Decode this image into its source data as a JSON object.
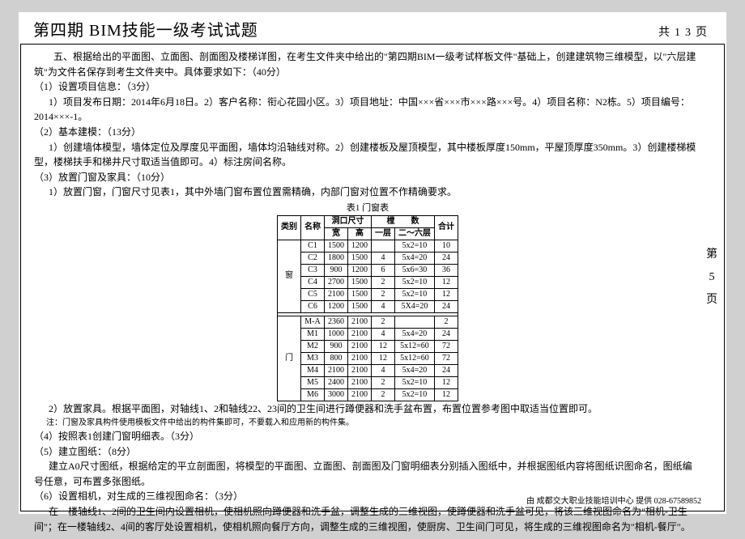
{
  "header": {
    "title": "第四期 BIM技能一级考试试题",
    "pagecount_prefix": "共",
    "pagecount_num": "13",
    "pagecount_suffix": "页"
  },
  "side": {
    "char1": "第",
    "char2": "5",
    "char3": "页"
  },
  "body": {
    "p1": "五、根据给出的平面图、立面图、剖面图及楼梯详图，在考生文件夹中给出的\"第四期BIM一级考试样板文件\"基础上，创建建筑物三维模型，以\"六层建筑\"为文件名保存到考生文件夹中。具体要求如下：（40分）",
    "s1head": "（1）设置项目信息：（3分）",
    "s1body": "1）项目发布日期：2014年6月18日。2）客户名称：衔心花园小区。3）项目地址：中国×××省×××市×××路×××号。4）项目名称：N2栋。5）项目编号：2014×××-1。",
    "s2head": "（2）基本建模：（13分）",
    "s2body": "1）创建墙体模型，墙体定位及厚度见平面图，墙体均沿轴线对称。2）创建楼板及屋顶模型，其中楼板厚度150mm，平屋顶厚度350mm。3）创建楼梯模型，楼梯扶手和梯井尺寸取适当值即可。4）标注房间名称。",
    "s3head": "（3）放置门窗及家具：（10分）",
    "s3body": "1）放置门窗，门窗尺寸见表1，其中外墙门窗布置位置需精确，内部门窗对位置不作精确要求。",
    "caption": "表1 门窗表",
    "tbl": {
      "h_type": "类别",
      "h_name": "名称",
      "h_size": "洞口尺寸",
      "h_w": "宽",
      "h_h": "高",
      "h_count": "樘　　数",
      "h_f1": "一层",
      "h_f26": "二～六层",
      "h_total": "合计",
      "cat_win": "窗",
      "cat_door": "门",
      "rows": [
        {
          "n": "C1",
          "w": "1500",
          "h": "1200",
          "f1": "",
          "f26": "5x2=10",
          "t": "10"
        },
        {
          "n": "C2",
          "w": "1800",
          "h": "1500",
          "f1": "4",
          "f26": "5x4=20",
          "t": "24"
        },
        {
          "n": "C3",
          "w": "900",
          "h": "1200",
          "f1": "6",
          "f26": "5x6=30",
          "t": "36"
        },
        {
          "n": "C4",
          "w": "2700",
          "h": "1500",
          "f1": "2",
          "f26": "5x2=10",
          "t": "12"
        },
        {
          "n": "C5",
          "w": "2100",
          "h": "1500",
          "f1": "2",
          "f26": "5x2=10",
          "t": "12"
        },
        {
          "n": "C6",
          "w": "1200",
          "h": "1500",
          "f1": "4",
          "f26": "5X4=20",
          "t": "24"
        },
        {
          "n": "M-A",
          "w": "2360",
          "h": "2100",
          "f1": "2",
          "f26": "",
          "t": "2"
        },
        {
          "n": "M1",
          "w": "1000",
          "h": "2100",
          "f1": "4",
          "f26": "5x4=20",
          "t": "24"
        },
        {
          "n": "M2",
          "w": "900",
          "h": "2100",
          "f1": "12",
          "f26": "5x12=60",
          "t": "72"
        },
        {
          "n": "M3",
          "w": "800",
          "h": "2100",
          "f1": "12",
          "f26": "5x12=60",
          "t": "72"
        },
        {
          "n": "M4",
          "w": "2100",
          "h": "2100",
          "f1": "4",
          "f26": "5x4=20",
          "t": "24"
        },
        {
          "n": "M5",
          "w": "2400",
          "h": "2100",
          "f1": "2",
          "f26": "5x2=10",
          "t": "12"
        },
        {
          "n": "M6",
          "w": "3000",
          "h": "2100",
          "f1": "2",
          "f26": "5x2=10",
          "t": "12"
        }
      ]
    },
    "s3body2": "2）放置家具。根据平面图，对轴线1、2和轴线22、23间的卫生间进行蹲便器和洗手盆布置，布置位置参考图中取适当位置即可。",
    "note": "注：门窗及家具构件使用模板文件中给出的构件集即可，不要载入和应用新的构件集。",
    "s4": "（4）按照表1创建门窗明细表。（3分）",
    "s5head": "（5）建立图纸：（8分）",
    "s5body": "建立A0尺寸图纸，根据给定的平立剖面图，将模型的平面图、立面图、剖面图及门窗明细表分别插入图纸中，并根据图纸内容将图纸识图命名，图纸编号任意，可布置多张图纸。",
    "s6head": "（6）设置相机，对生成的三维视图命名：（3分）",
    "s6body": "在一楼轴线1、2间的卫生间内设置相机，使相机照向蹲便器和洗手盆，调整生成的三维视图，使蹲便器和洗手盆可见，将该三维视图命名为\"相机-卫生间\"；在一楼轴线2、4间的客厅处设置相机，使相机照向餐厅方向，调整生成的三维视图，使厨房、卫生间门可见，将生成的三维视图命名为\"相机-餐厅\"。"
  },
  "footer": "由 成都交大职业技能培训中心 提供 028-67589852"
}
